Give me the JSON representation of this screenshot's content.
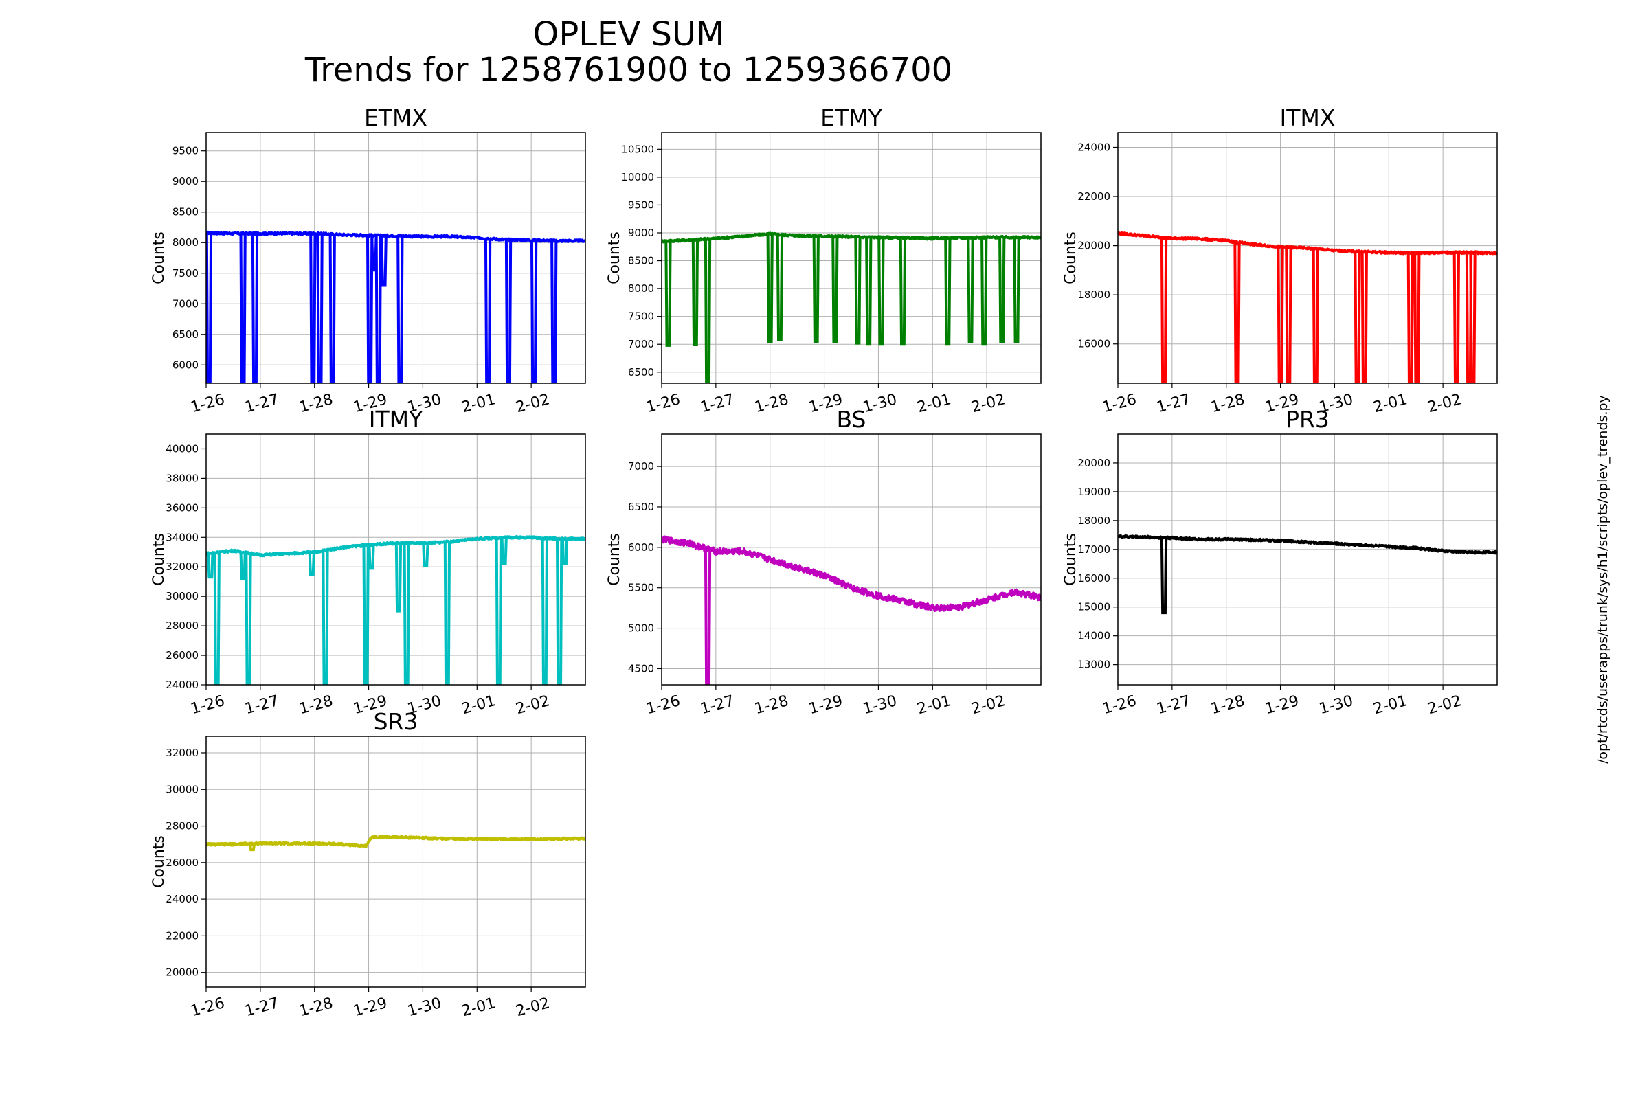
{
  "figure": {
    "title": "OPLEV SUM",
    "subtitle": "Trends for 1258761900 to 1259366700",
    "side_label": "/opt/rtcds/userapps/trunk/sys/h1/scripts/oplev_trends.py"
  },
  "chart_data": [
    {
      "type": "line",
      "title": "ETMX",
      "ylabel": "Counts",
      "color": "#0000ff",
      "xlim": [
        0,
        7
      ],
      "ylim": [
        5700,
        9800
      ],
      "xticks": [
        0,
        1,
        2,
        3,
        4,
        5,
        6
      ],
      "xticklabels": [
        "1-26",
        "1-27",
        "1-28",
        "1-29",
        "1-30",
        "2-01",
        "2-02"
      ],
      "yticks": [
        6000,
        6500,
        7000,
        7500,
        8000,
        8500,
        9000,
        9500
      ],
      "yticklabels": [
        "6000",
        "6500",
        "7000",
        "7500",
        "8000",
        "8500",
        "9000",
        "9500"
      ],
      "grid": true,
      "series": [
        {
          "x": [
            0,
            0.5,
            1,
            1.5,
            2,
            2.5,
            3,
            3.5,
            4,
            4.5,
            5,
            5.5,
            6,
            6.5,
            7
          ],
          "y": [
            8160,
            8150,
            8150,
            8150,
            8150,
            8130,
            8120,
            8110,
            8100,
            8100,
            8080,
            8050,
            8040,
            8030,
            8030
          ]
        }
      ],
      "drops": [
        {
          "x": 0.05,
          "y": 5700
        },
        {
          "x": 0.68,
          "y": 5700
        },
        {
          "x": 0.9,
          "y": 5700
        },
        {
          "x": 1.97,
          "y": 5700
        },
        {
          "x": 2.1,
          "y": 5700
        },
        {
          "x": 2.33,
          "y": 5700
        },
        {
          "x": 3.02,
          "y": 5700
        },
        {
          "x": 3.1,
          "y": 7550
        },
        {
          "x": 3.18,
          "y": 5700
        },
        {
          "x": 3.28,
          "y": 7300
        },
        {
          "x": 3.58,
          "y": 5700
        },
        {
          "x": 5.2,
          "y": 5700
        },
        {
          "x": 5.58,
          "y": 5700
        },
        {
          "x": 6.05,
          "y": 5700
        },
        {
          "x": 6.42,
          "y": 5700
        }
      ]
    },
    {
      "type": "line",
      "title": "ETMY",
      "ylabel": "Counts",
      "color": "#008000",
      "xlim": [
        0,
        7
      ],
      "ylim": [
        6300,
        10800
      ],
      "xticks": [
        0,
        1,
        2,
        3,
        4,
        5,
        6
      ],
      "xticklabels": [
        "1-26",
        "1-27",
        "1-28",
        "1-29",
        "1-30",
        "2-01",
        "2-02"
      ],
      "yticks": [
        6500,
        7000,
        7500,
        8000,
        8500,
        9000,
        9500,
        10000,
        10500
      ],
      "yticklabels": [
        "6500",
        "7000",
        "7500",
        "8000",
        "8500",
        "9000",
        "9500",
        "10000",
        "10500"
      ],
      "grid": true,
      "series": [
        {
          "x": [
            0,
            0.5,
            1,
            1.5,
            2,
            2.5,
            3,
            3.5,
            4,
            4.5,
            5,
            5.5,
            6,
            6.5,
            7
          ],
          "y": [
            8850,
            8870,
            8900,
            8940,
            8980,
            8950,
            8940,
            8930,
            8920,
            8910,
            8900,
            8910,
            8920,
            8920,
            8920
          ]
        }
      ],
      "drops": [
        {
          "x": 0.12,
          "y": 6980
        },
        {
          "x": 0.62,
          "y": 6990
        },
        {
          "x": 0.85,
          "y": 6300
        },
        {
          "x": 2.0,
          "y": 7050
        },
        {
          "x": 2.18,
          "y": 7080
        },
        {
          "x": 2.85,
          "y": 7050
        },
        {
          "x": 3.2,
          "y": 7050
        },
        {
          "x": 3.62,
          "y": 7020
        },
        {
          "x": 3.82,
          "y": 7000
        },
        {
          "x": 4.05,
          "y": 7000
        },
        {
          "x": 4.45,
          "y": 7000
        },
        {
          "x": 5.28,
          "y": 7000
        },
        {
          "x": 5.7,
          "y": 7050
        },
        {
          "x": 5.95,
          "y": 7000
        },
        {
          "x": 6.28,
          "y": 7050
        },
        {
          "x": 6.55,
          "y": 7050
        }
      ]
    },
    {
      "type": "line",
      "title": "ITMX",
      "ylabel": "Counts",
      "color": "#ff0000",
      "xlim": [
        0,
        7
      ],
      "ylim": [
        14400,
        24600
      ],
      "xticks": [
        0,
        1,
        2,
        3,
        4,
        5,
        6
      ],
      "xticklabels": [
        "1-26",
        "1-27",
        "1-28",
        "1-29",
        "1-30",
        "2-01",
        "2-02"
      ],
      "yticks": [
        16000,
        18000,
        20000,
        22000,
        24000
      ],
      "yticklabels": [
        "16000",
        "18000",
        "20000",
        "22000",
        "24000"
      ],
      "grid": true,
      "series": [
        {
          "x": [
            0,
            0.5,
            1,
            1.5,
            2,
            2.5,
            3,
            3.5,
            4,
            4.5,
            5,
            5.5,
            6,
            6.5,
            7
          ],
          "y": [
            20500,
            20400,
            20300,
            20280,
            20200,
            20050,
            19950,
            19900,
            19800,
            19750,
            19720,
            19700,
            19720,
            19720,
            19700
          ]
        }
      ],
      "drops": [
        {
          "x": 0.85,
          "y": 14400
        },
        {
          "x": 2.2,
          "y": 14400
        },
        {
          "x": 3.0,
          "y": 14400
        },
        {
          "x": 3.15,
          "y": 14400
        },
        {
          "x": 3.65,
          "y": 14400
        },
        {
          "x": 4.42,
          "y": 14400
        },
        {
          "x": 4.55,
          "y": 14400
        },
        {
          "x": 5.4,
          "y": 14400
        },
        {
          "x": 5.52,
          "y": 14400
        },
        {
          "x": 6.25,
          "y": 14400
        },
        {
          "x": 6.48,
          "y": 14400
        },
        {
          "x": 6.55,
          "y": 14400
        }
      ]
    },
    {
      "type": "line",
      "title": "ITMY",
      "ylabel": "Counts",
      "color": "#00bfbf",
      "xlim": [
        0,
        7
      ],
      "ylim": [
        24000,
        41000
      ],
      "xticks": [
        0,
        1,
        2,
        3,
        4,
        5,
        6
      ],
      "xticklabels": [
        "1-26",
        "1-27",
        "1-28",
        "1-29",
        "1-30",
        "2-01",
        "2-02"
      ],
      "yticks": [
        24000,
        26000,
        28000,
        30000,
        32000,
        34000,
        36000,
        38000,
        40000
      ],
      "yticklabels": [
        "24000",
        "26000",
        "28000",
        "30000",
        "32000",
        "34000",
        "36000",
        "38000",
        "40000"
      ],
      "grid": true,
      "series": [
        {
          "x": [
            0,
            0.5,
            1,
            1.5,
            2,
            2.5,
            3,
            3.5,
            4,
            4.5,
            5,
            5.5,
            6,
            6.5,
            7
          ],
          "y": [
            32900,
            33100,
            32800,
            32900,
            33000,
            33300,
            33500,
            33600,
            33600,
            33700,
            33900,
            34000,
            34000,
            33900,
            33900
          ]
        }
      ],
      "drops": [
        {
          "x": 0.08,
          "y": 31300
        },
        {
          "x": 0.2,
          "y": 24000
        },
        {
          "x": 0.68,
          "y": 31200
        },
        {
          "x": 0.78,
          "y": 24000
        },
        {
          "x": 1.95,
          "y": 31500
        },
        {
          "x": 2.2,
          "y": 24000
        },
        {
          "x": 2.95,
          "y": 24000
        },
        {
          "x": 3.05,
          "y": 31900
        },
        {
          "x": 3.55,
          "y": 29000
        },
        {
          "x": 3.7,
          "y": 24000
        },
        {
          "x": 4.05,
          "y": 32100
        },
        {
          "x": 4.45,
          "y": 24000
        },
        {
          "x": 5.4,
          "y": 24000
        },
        {
          "x": 5.5,
          "y": 32200
        },
        {
          "x": 6.25,
          "y": 24000
        },
        {
          "x": 6.52,
          "y": 24000
        },
        {
          "x": 6.62,
          "y": 32200
        }
      ]
    },
    {
      "type": "line",
      "title": "BS",
      "ylabel": "Counts",
      "color": "#bf00bf",
      "xlim": [
        0,
        7
      ],
      "ylim": [
        4300,
        7400
      ],
      "xticks": [
        0,
        1,
        2,
        3,
        4,
        5,
        6
      ],
      "xticklabels": [
        "1-26",
        "1-27",
        "1-28",
        "1-29",
        "1-30",
        "2-01",
        "2-02"
      ],
      "yticks": [
        4500,
        5000,
        5500,
        6000,
        6500,
        7000
      ],
      "yticklabels": [
        "4500",
        "5000",
        "5500",
        "6000",
        "6500",
        "7000"
      ],
      "grid": true,
      "series": [
        {
          "x": [
            0,
            0.5,
            1,
            1.5,
            2,
            2.5,
            3,
            3.5,
            4,
            4.5,
            5,
            5.5,
            6,
            6.5,
            7
          ],
          "y": [
            6100,
            6050,
            5950,
            5950,
            5850,
            5750,
            5650,
            5500,
            5400,
            5330,
            5250,
            5260,
            5350,
            5450,
            5380
          ]
        }
      ],
      "drops": [
        {
          "x": 0.85,
          "y": 4300
        }
      ]
    },
    {
      "type": "line",
      "title": "PR3",
      "ylabel": "Counts",
      "color": "#000000",
      "xlim": [
        0,
        7
      ],
      "ylim": [
        12300,
        21000
      ],
      "xticks": [
        0,
        1,
        2,
        3,
        4,
        5,
        6
      ],
      "xticklabels": [
        "1-26",
        "1-27",
        "1-28",
        "1-29",
        "1-30",
        "2-01",
        "2-02"
      ],
      "yticks": [
        13000,
        14000,
        15000,
        16000,
        17000,
        18000,
        19000,
        20000
      ],
      "yticklabels": [
        "13000",
        "14000",
        "15000",
        "16000",
        "17000",
        "18000",
        "19000",
        "20000"
      ],
      "grid": true,
      "series": [
        {
          "x": [
            0,
            0.5,
            1,
            1.5,
            2,
            2.5,
            3,
            3.5,
            4,
            4.5,
            5,
            5.5,
            6,
            6.5,
            7
          ],
          "y": [
            17450,
            17430,
            17400,
            17350,
            17350,
            17330,
            17300,
            17250,
            17200,
            17150,
            17100,
            17050,
            16950,
            16900,
            16900
          ]
        }
      ],
      "drops": [
        {
          "x": 0.85,
          "y": 14800
        }
      ]
    },
    {
      "type": "line",
      "title": "SR3",
      "ylabel": "Counts",
      "color": "#bfbf00",
      "xlim": [
        0,
        7
      ],
      "ylim": [
        19200,
        32900
      ],
      "xticks": [
        0,
        1,
        2,
        3,
        4,
        5,
        6
      ],
      "xticklabels": [
        "1-26",
        "1-27",
        "1-28",
        "1-29",
        "1-30",
        "2-01",
        "2-02"
      ],
      "yticks": [
        20000,
        22000,
        24000,
        26000,
        28000,
        30000,
        32000
      ],
      "yticklabels": [
        "20000",
        "22000",
        "24000",
        "26000",
        "28000",
        "30000",
        "32000"
      ],
      "grid": true,
      "series": [
        {
          "x": [
            0,
            0.5,
            1,
            1.5,
            2,
            2.5,
            2.95,
            3.05,
            3.5,
            4,
            4.5,
            5,
            5.5,
            6,
            6.5,
            7
          ],
          "y": [
            27000,
            27000,
            27050,
            27050,
            27050,
            27000,
            26900,
            27400,
            27400,
            27350,
            27300,
            27300,
            27280,
            27280,
            27300,
            27330
          ]
        }
      ],
      "drops": [
        {
          "x": 0.85,
          "y": 26700
        }
      ]
    }
  ]
}
